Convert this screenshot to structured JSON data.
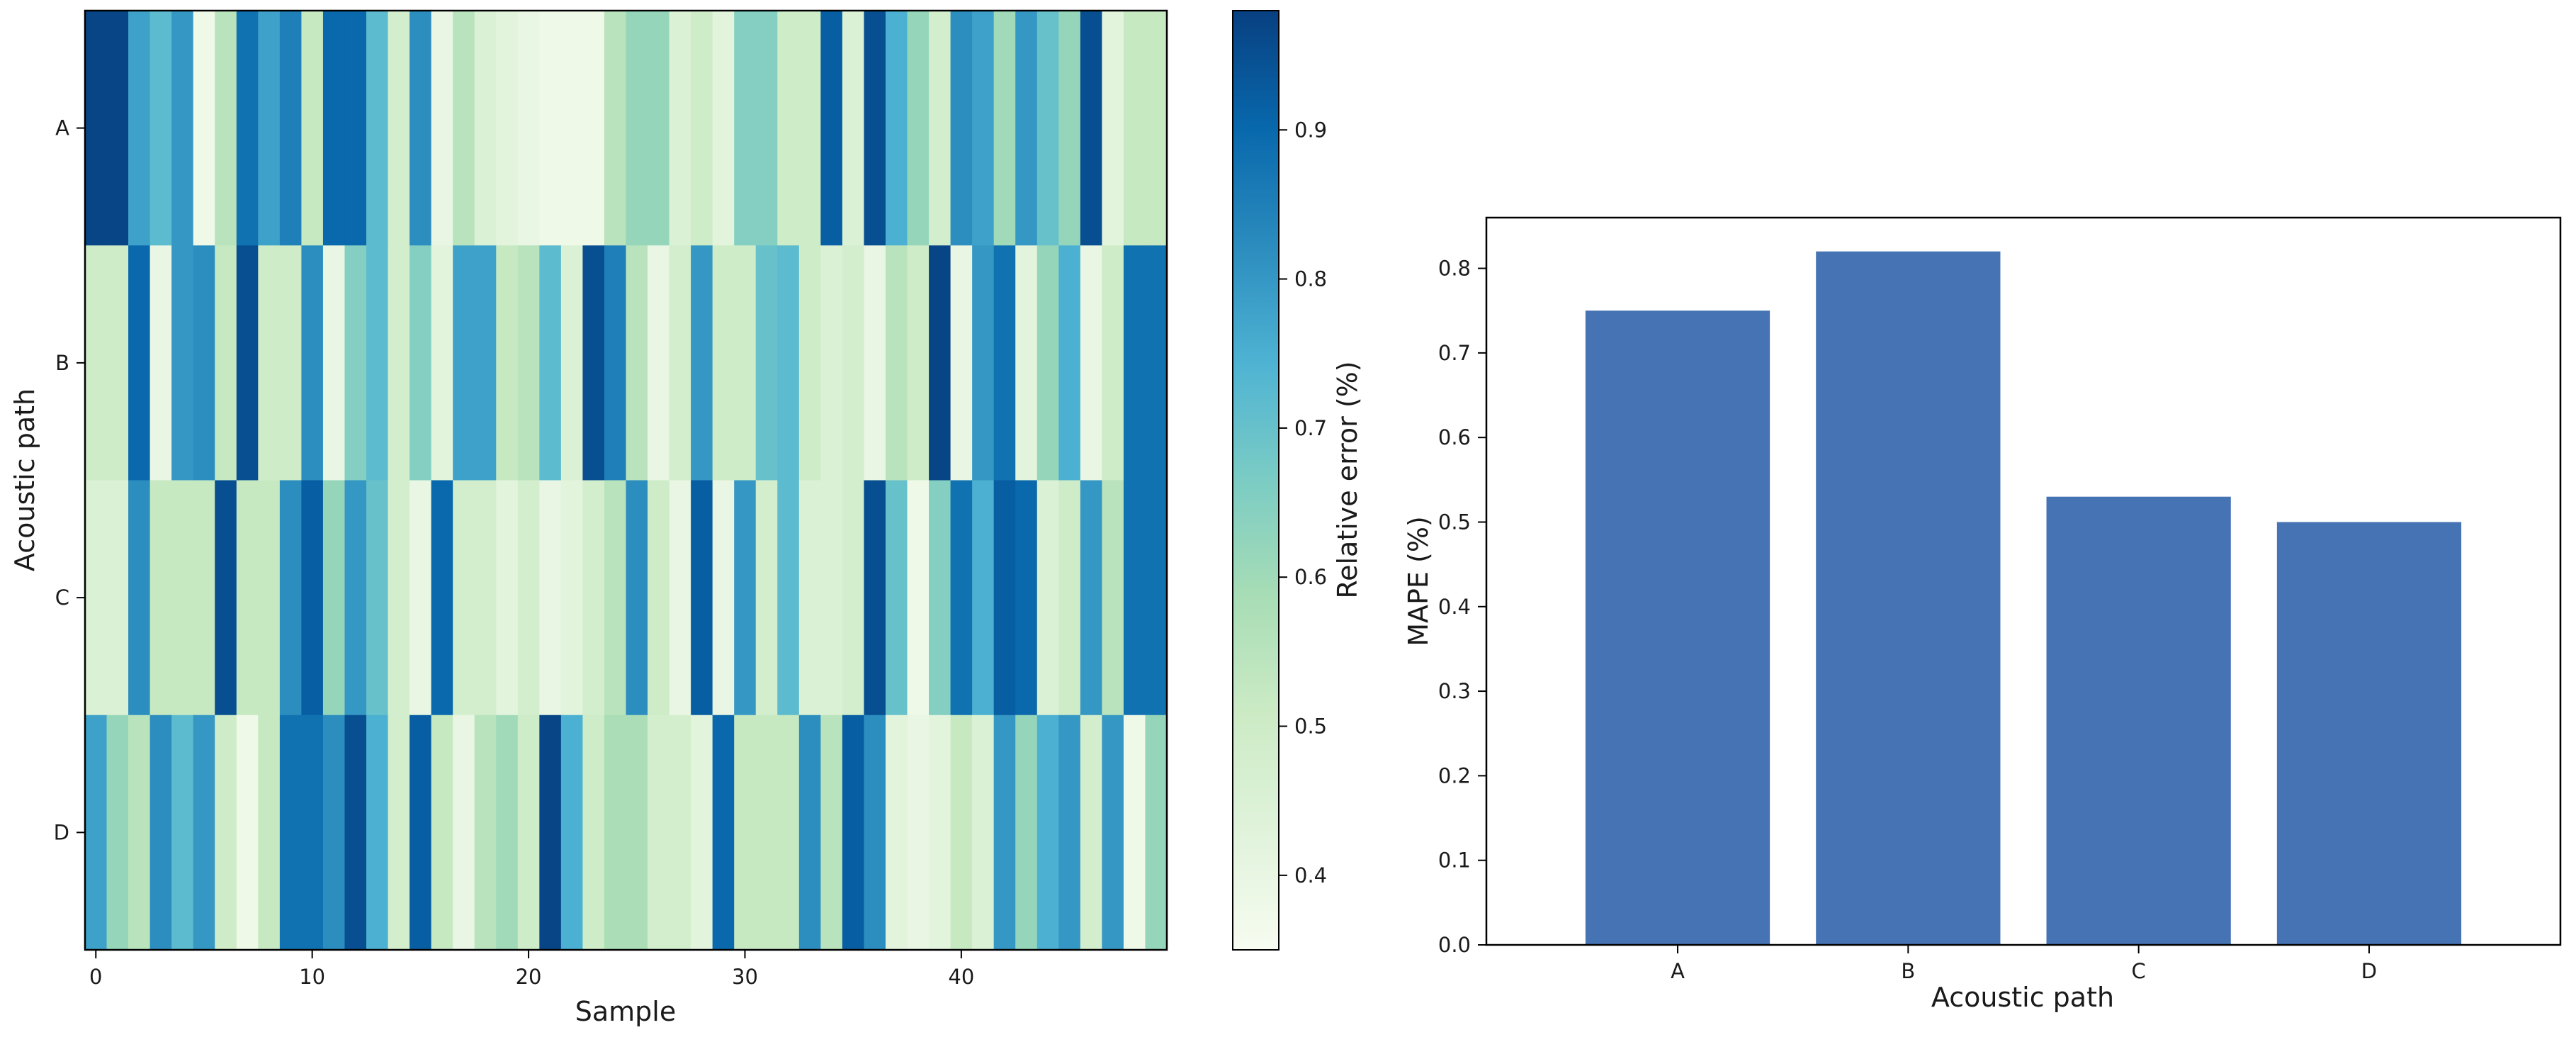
{
  "chart_data": [
    {
      "type": "heatmap",
      "xlabel": "Sample",
      "ylabel": "Acoustic path",
      "rows": [
        "A",
        "B",
        "C",
        "D"
      ],
      "x_ticks": [
        0,
        10,
        20,
        30,
        40
      ],
      "n_samples": 50,
      "colorbar": {
        "label": "Relative error (%)",
        "ticks": [
          0.4,
          0.5,
          0.6,
          0.7,
          0.8,
          0.9
        ],
        "vmin": 0.35,
        "vmax": 0.98,
        "colormap": [
          "#f7fcf0",
          "#e0f3db",
          "#ccebc5",
          "#a8ddb5",
          "#7bccc4",
          "#4eb3d3",
          "#2b8cbe",
          "#0868ac",
          "#084081"
        ]
      },
      "values": [
        [
          0.97,
          0.97,
          0.78,
          0.72,
          0.8,
          0.38,
          0.55,
          0.88,
          0.78,
          0.85,
          0.52,
          0.9,
          0.9,
          0.72,
          0.48,
          0.82,
          0.4,
          0.55,
          0.45,
          0.42,
          0.4,
          0.38,
          0.38,
          0.38,
          0.55,
          0.62,
          0.62,
          0.45,
          0.5,
          0.42,
          0.65,
          0.65,
          0.5,
          0.5,
          0.92,
          0.45,
          0.95,
          0.75,
          0.62,
          0.48,
          0.82,
          0.78,
          0.6,
          0.8,
          0.7,
          0.62,
          0.95,
          0.42,
          0.52,
          0.52
        ],
        [
          0.5,
          0.5,
          0.9,
          0.4,
          0.8,
          0.82,
          0.52,
          0.95,
          0.5,
          0.5,
          0.82,
          0.4,
          0.65,
          0.72,
          0.48,
          0.65,
          0.42,
          0.78,
          0.78,
          0.52,
          0.55,
          0.72,
          0.45,
          0.95,
          0.85,
          0.55,
          0.4,
          0.48,
          0.8,
          0.5,
          0.5,
          0.7,
          0.72,
          0.5,
          0.45,
          0.48,
          0.4,
          0.55,
          0.5,
          0.97,
          0.4,
          0.8,
          0.88,
          0.42,
          0.62,
          0.75,
          0.4,
          0.5,
          0.88,
          0.88
        ],
        [
          0.45,
          0.45,
          0.82,
          0.52,
          0.52,
          0.52,
          0.95,
          0.52,
          0.52,
          0.82,
          0.92,
          0.62,
          0.8,
          0.7,
          0.48,
          0.4,
          0.9,
          0.48,
          0.48,
          0.42,
          0.48,
          0.4,
          0.42,
          0.48,
          0.55,
          0.82,
          0.5,
          0.4,
          0.92,
          0.4,
          0.8,
          0.48,
          0.72,
          0.45,
          0.45,
          0.48,
          0.95,
          0.7,
          0.38,
          0.65,
          0.88,
          0.75,
          0.92,
          0.9,
          0.45,
          0.5,
          0.8,
          0.55,
          0.88,
          0.88
        ],
        [
          0.78,
          0.62,
          0.55,
          0.82,
          0.72,
          0.8,
          0.5,
          0.38,
          0.52,
          0.88,
          0.88,
          0.82,
          0.95,
          0.75,
          0.48,
          0.92,
          0.52,
          0.4,
          0.55,
          0.6,
          0.5,
          0.97,
          0.75,
          0.5,
          0.58,
          0.58,
          0.48,
          0.48,
          0.42,
          0.9,
          0.52,
          0.52,
          0.52,
          0.82,
          0.55,
          0.92,
          0.82,
          0.42,
          0.4,
          0.42,
          0.52,
          0.45,
          0.8,
          0.62,
          0.75,
          0.8,
          0.48,
          0.8,
          0.38,
          0.62
        ]
      ]
    },
    {
      "type": "bar",
      "categories": [
        "A",
        "B",
        "C",
        "D"
      ],
      "values": [
        0.75,
        0.82,
        0.53,
        0.5
      ],
      "xlabel": "Acoustic path",
      "ylabel": "MAPE (%)",
      "ylim": [
        0,
        0.86
      ],
      "y_ticks": [
        "0.0",
        "0.1",
        "0.2",
        "0.3",
        "0.4",
        "0.5",
        "0.6",
        "0.7",
        "0.8"
      ],
      "color": "#4573b3"
    }
  ]
}
